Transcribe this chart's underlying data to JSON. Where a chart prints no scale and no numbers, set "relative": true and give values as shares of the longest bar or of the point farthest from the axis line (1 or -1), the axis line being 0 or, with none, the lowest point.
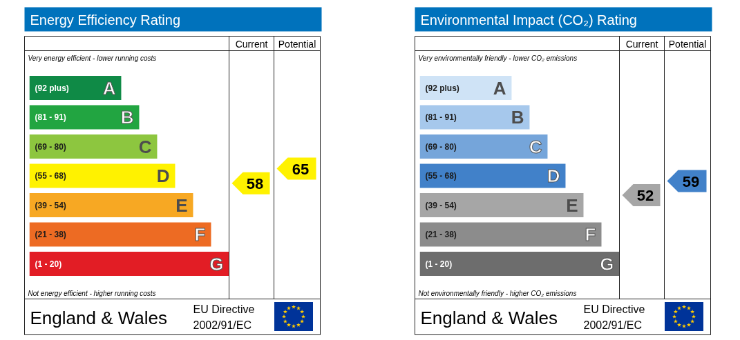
{
  "chart_data": [
    {
      "type": "bar",
      "orientation": "horizontal",
      "relative": true,
      "title": "Energy Efficiency Rating",
      "categories": [
        "(92 plus)",
        "(81 - 91)",
        "(69 - 80)",
        "(55 - 68)",
        "(39 - 54)",
        "(21 - 38)",
        "(1 - 20)"
      ],
      "values": [
        0.46,
        0.55,
        0.64,
        0.73,
        0.82,
        0.91,
        1
      ],
      "colors": [
        "#0f8a46",
        "#22a541",
        "#8dc63f",
        "#fff200",
        "#f7a823",
        "#ed6b23",
        "#e21d25"
      ],
      "annotations": [
        "Very energy efficient - lower running costs",
        "Not energy efficient - higher running costs",
        "England & Wales",
        "EU Directive",
        "2002/91/EC",
        "Current",
        "Potential",
        "58",
        "65",
        {
          "text": "A",
          "x": 0.46,
          "y": "(92 plus)"
        },
        {
          "text": "B",
          "x": 0.55,
          "y": "(81 - 91)"
        },
        {
          "text": "C",
          "x": 0.64,
          "y": "(69 - 80)"
        },
        {
          "text": "D",
          "x": 0.73,
          "y": "(55 - 68)"
        },
        {
          "text": "E",
          "x": 0.82,
          "y": "(39 - 54)"
        },
        {
          "text": "F",
          "x": 0.91,
          "y": "(21 - 38)"
        },
        {
          "text": "G",
          "x": 1,
          "y": "(1 - 20)"
        }
      ]
    },
    {
      "type": "bar",
      "orientation": "horizontal",
      "relative": true,
      "title": "Environmental Impact (CO₂) Rating",
      "categories": [
        "(92 plus)",
        "(81 - 91)",
        "(69 - 80)",
        "(55 - 68)",
        "(39 - 54)",
        "(21 - 38)",
        "(1 - 20)"
      ],
      "values": [
        0.46,
        0.55,
        0.64,
        0.73,
        0.82,
        0.91,
        1
      ],
      "colors": [
        "#cfe3f6",
        "#a6c8ec",
        "#75a5da",
        "#4181c9",
        "#a6a6a6",
        "#8c8c8c",
        "#6d6d6d"
      ],
      "annotations": [
        "Very environmentally friendly - lower CO₂ emissions",
        "Not environmentally friendly - higher CO₂ emissions",
        "England & Wales",
        "EU Directive",
        "2002/91/EC",
        "Current",
        "Potential",
        "52",
        "59",
        {
          "text": "A",
          "x": 0.46,
          "y": "(92 plus)"
        },
        {
          "text": "B",
          "x": 0.55,
          "y": "(81 - 91)"
        },
        {
          "text": "C",
          "x": 0.64,
          "y": "(69 - 80)"
        },
        {
          "text": "D",
          "x": 0.73,
          "y": "(55 - 68)"
        },
        {
          "text": "E",
          "x": 0.82,
          "y": "(39 - 54)"
        },
        {
          "text": "F",
          "x": 0.91,
          "y": "(21 - 38)"
        },
        {
          "text": "G",
          "x": 1,
          "y": "(1 - 20)"
        }
      ]
    }
  ]
}
